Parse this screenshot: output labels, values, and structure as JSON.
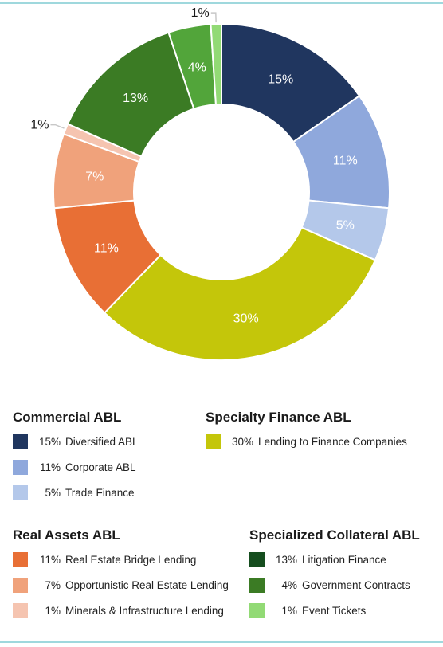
{
  "chart_data": {
    "type": "pie",
    "title": "",
    "slices": [
      {
        "label": "Diversified ABL",
        "value": 15,
        "display": "15%",
        "color": "#20365f",
        "label_color": "#ffffff"
      },
      {
        "label": "Corporate ABL",
        "value": 11,
        "display": "11%",
        "color": "#8fa8dc",
        "label_color": "#ffffff"
      },
      {
        "label": "Trade Finance",
        "value": 5,
        "display": "5%",
        "color": "#b4c8ea",
        "label_color": "#ffffff"
      },
      {
        "label": "Lending to Finance Companies",
        "value": 30,
        "display": "30%",
        "color": "#c4c60a",
        "label_color": "#ffffff"
      },
      {
        "label": "Real Estate Bridge Lending",
        "value": 11,
        "display": "11%",
        "color": "#e86f35",
        "label_color": "#ffffff"
      },
      {
        "label": "Opportunistic Real Estate Lending",
        "value": 7,
        "display": "7%",
        "color": "#f0a27b",
        "label_color": "#ffffff"
      },
      {
        "label": "Minerals & Infrastructure Lending",
        "value": 1,
        "display": "1%",
        "color": "#f5c4b0",
        "label_color": "#1a1a1a",
        "outside": true
      },
      {
        "label": "Litigation Finance",
        "value": 13,
        "display": "13%",
        "color": "#3b7b24",
        "label_color": "#ffffff"
      },
      {
        "label": "Government Contracts",
        "value": 4,
        "display": "4%",
        "color": "#52a53a",
        "label_color": "#ffffff"
      },
      {
        "label": "Event Tickets",
        "value": 1,
        "display": "1%",
        "color": "#92da75",
        "label_color": "#1a1a1a",
        "outside": true
      }
    ]
  },
  "legend": {
    "groups": [
      {
        "title": "Commercial ABL",
        "items": [
          {
            "pct": "15%",
            "label": "Diversified ABL",
            "color": "#20365f"
          },
          {
            "pct": "11%",
            "label": "Corporate ABL",
            "color": "#8fa8dc"
          },
          {
            "pct": "5%",
            "label": "Trade Finance",
            "color": "#b4c8ea"
          }
        ]
      },
      {
        "title": "Specialty Finance ABL",
        "items": [
          {
            "pct": "30%",
            "label": "Lending to Finance Companies",
            "color": "#c4c60a"
          }
        ]
      },
      {
        "title": "Real Assets ABL",
        "items": [
          {
            "pct": "11%",
            "label": "Real Estate Bridge Lending",
            "color": "#e86f35"
          },
          {
            "pct": "7%",
            "label": "Opportunistic Real Estate Lending",
            "color": "#f0a27b"
          },
          {
            "pct": "1%",
            "label": "Minerals & Infrastructure Lending",
            "color": "#f5c4b0"
          }
        ]
      },
      {
        "title": "Specialized Collateral ABL",
        "items": [
          {
            "pct": "13%",
            "label": "Litigation Finance",
            "color": "#154d1e"
          },
          {
            "pct": "4%",
            "label": "Government Contracts",
            "color": "#3b7b24"
          },
          {
            "pct": "1%",
            "label": "Event Tickets",
            "color": "#92da75"
          }
        ]
      }
    ]
  }
}
